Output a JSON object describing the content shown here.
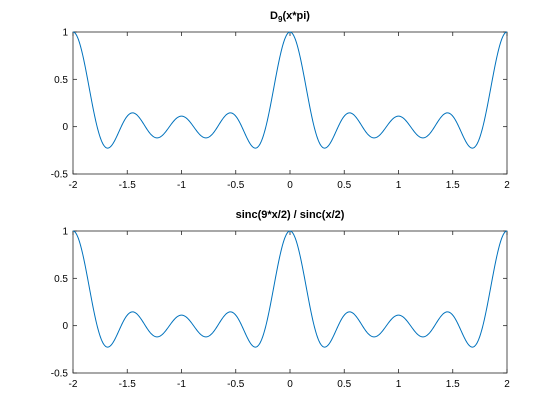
{
  "chart_data": [
    {
      "type": "line",
      "title_main": "D",
      "title_sub": "9",
      "title_rest": "(x*pi)",
      "xlim": [
        -2,
        2
      ],
      "ylim": [
        -0.5,
        1
      ],
      "xticks": [
        -2,
        -1.5,
        -1,
        -0.5,
        0,
        0.5,
        1,
        1.5,
        2
      ],
      "xtick_labels": [
        "-2",
        "-1.5",
        "-1",
        "-0.5",
        "0",
        "0.5",
        "1",
        "1.5",
        "2"
      ],
      "yticks": [
        -0.5,
        0,
        0.5,
        1
      ],
      "ytick_labels": [
        "-0.5",
        "0",
        "0.5",
        "1"
      ],
      "grid": false,
      "color": "#0072BD",
      "function": "normalized Dirichlet kernel of order 9, sin(9*pi*x/2)/(9*sin(pi*x/2)), sampled over x in [-2, 2]",
      "series": [
        {
          "x": [
            -2,
            -1.9,
            -1.8,
            -1.7,
            -1.6,
            -1.55,
            -1.45,
            -1.35,
            -1.25,
            -1.15,
            -1,
            -0.9,
            -0.8,
            -0.7,
            -0.6,
            -0.55,
            -0.45,
            -0.35,
            -0.3,
            -0.2,
            -0.1,
            0,
            0.1,
            0.2,
            0.3,
            0.35,
            0.45,
            0.55,
            0.6,
            0.7,
            0.8,
            0.9,
            1,
            1.15,
            1.25,
            1.35,
            1.45,
            1.55,
            1.6,
            1.7,
            1.8,
            1.9,
            2
          ],
          "y": [
            1,
            0.51,
            -0.03,
            -0.22,
            -0.04,
            0.05,
            0.13,
            0.02,
            -0.11,
            -0.02,
            0.11,
            -0.01,
            -0.12,
            0.02,
            0.14,
            0.08,
            -0.15,
            -0.22,
            -0.22,
            0.29,
            0.77,
            1,
            0.77,
            0.29,
            -0.22,
            -0.22,
            -0.15,
            0.08,
            0.14,
            0.02,
            -0.12,
            -0.01,
            0.11,
            -0.02,
            -0.11,
            0.02,
            0.13,
            0.05,
            -0.04,
            -0.22,
            -0.03,
            0.51,
            1
          ]
        }
      ]
    },
    {
      "type": "line",
      "title": "sinc(9*x/2) / sinc(x/2)",
      "xlim": [
        -2,
        2
      ],
      "ylim": [
        -0.5,
        1
      ],
      "xticks": [
        -2,
        -1.5,
        -1,
        -0.5,
        0,
        0.5,
        1,
        1.5,
        2
      ],
      "xtick_labels": [
        "-2",
        "-1.5",
        "-1",
        "-0.5",
        "0",
        "0.5",
        "1",
        "1.5",
        "2"
      ],
      "yticks": [
        -0.5,
        0,
        0.5,
        1
      ],
      "ytick_labels": [
        "-0.5",
        "0",
        "0.5",
        "1"
      ],
      "grid": false,
      "color": "#0072BD",
      "function": "ratio sinc(9x/2)/sinc(x/2) with normalized sinc, identical to the normalized Dirichlet kernel of order 9",
      "series": [
        {
          "x": [
            -2,
            -1.9,
            -1.8,
            -1.7,
            -1.6,
            -1.55,
            -1.45,
            -1.35,
            -1.25,
            -1.15,
            -1,
            -0.9,
            -0.8,
            -0.7,
            -0.6,
            -0.55,
            -0.45,
            -0.35,
            -0.3,
            -0.2,
            -0.1,
            0,
            0.1,
            0.2,
            0.3,
            0.35,
            0.45,
            0.55,
            0.6,
            0.7,
            0.8,
            0.9,
            1,
            1.15,
            1.25,
            1.35,
            1.45,
            1.55,
            1.6,
            1.7,
            1.8,
            1.9,
            2
          ],
          "y": [
            1,
            0.51,
            -0.03,
            -0.22,
            -0.04,
            0.05,
            0.13,
            0.02,
            -0.11,
            -0.02,
            0.11,
            -0.01,
            -0.12,
            0.02,
            0.14,
            0.08,
            -0.15,
            -0.22,
            -0.22,
            0.29,
            0.77,
            1,
            0.77,
            0.29,
            -0.22,
            -0.22,
            -0.15,
            0.08,
            0.14,
            0.02,
            -0.12,
            -0.01,
            0.11,
            -0.02,
            -0.11,
            0.02,
            0.13,
            0.05,
            -0.04,
            -0.22,
            -0.03,
            0.51,
            1
          ]
        }
      ]
    }
  ]
}
